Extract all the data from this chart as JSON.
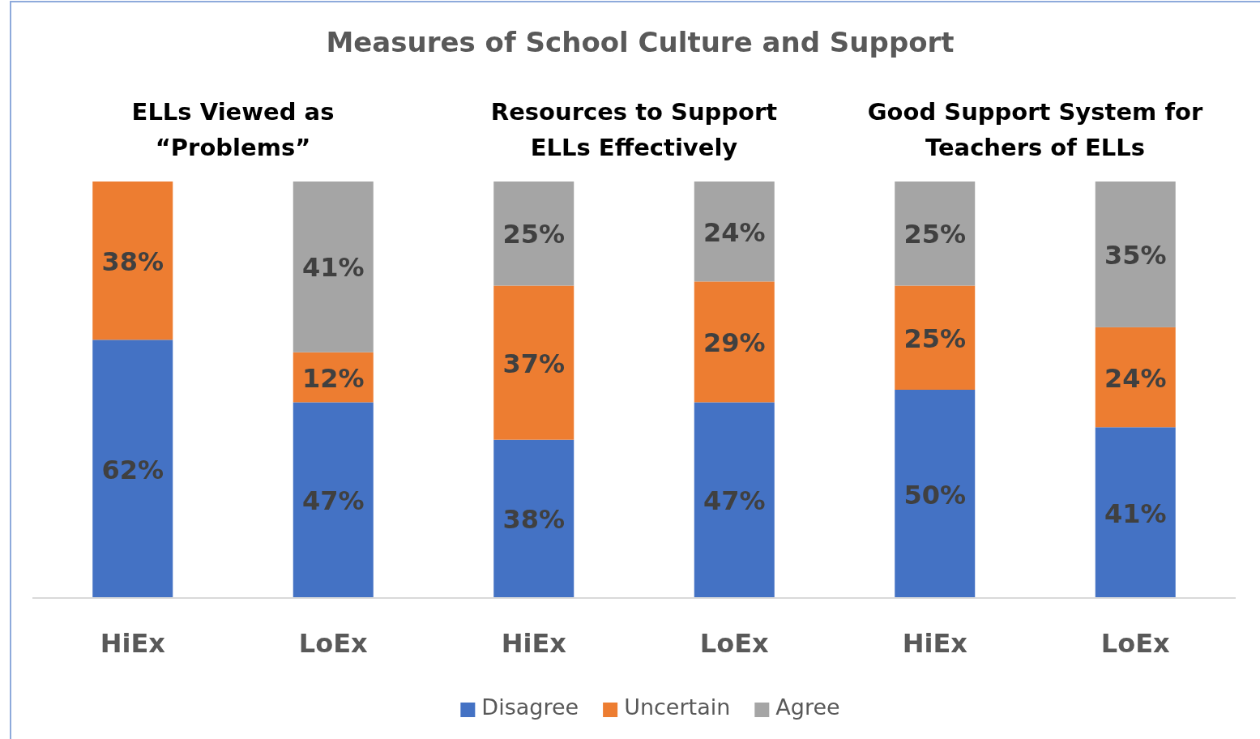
{
  "chart_data": {
    "type": "bar",
    "title": "Measures of School Culture and Support",
    "stacked": true,
    "legend": "bottom",
    "ylim": [
      0,
      100
    ],
    "tick_labels": "x",
    "categories": [
      "HiEx",
      "LoEx",
      "HiEx",
      "LoEx",
      "HiEx",
      "LoEx"
    ],
    "annotations": [
      "ELLs Viewed as\n“Problems”",
      "Resources to Support\nELLs Effectively",
      "Good Support System for\nTeachers of ELLs"
    ],
    "series": [
      {
        "name": "Disagree",
        "color": "#4472c4",
        "values": [
          62,
          47,
          38,
          47,
          50,
          41
        ],
        "value_labels": [
          "62%",
          "47%",
          "38%",
          "47%",
          "50%",
          "41%"
        ]
      },
      {
        "name": "Uncertain",
        "color": "#ed7d31",
        "values": [
          38,
          12,
          37,
          29,
          25,
          24
        ],
        "value_labels": [
          "38%",
          "12%",
          "37%",
          "29%",
          "25%",
          "24%"
        ]
      },
      {
        "name": "Agree",
        "color": "#a5a5a5",
        "values": [
          0,
          41,
          25,
          24,
          25,
          35
        ],
        "value_labels": [
          null,
          "41%",
          "25%",
          "24%",
          "25%",
          "35%"
        ]
      }
    ]
  }
}
